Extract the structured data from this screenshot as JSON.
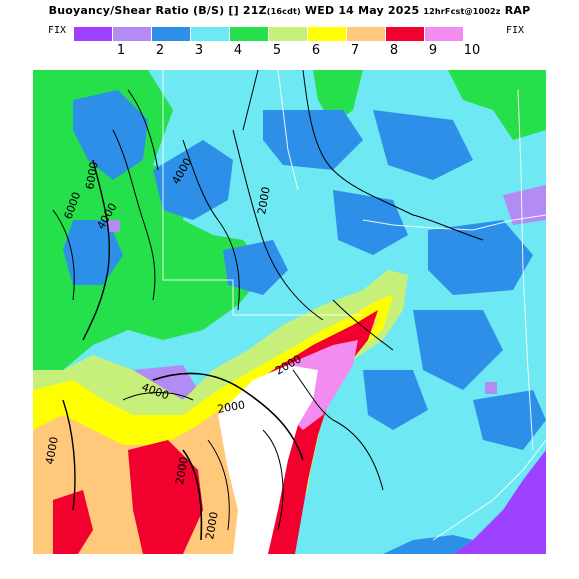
{
  "header": {
    "title": "Buoyancy/Shear Ratio (B/S)",
    "time": "[] 21Z",
    "local_time": "(16cdt)",
    "date": "WED 14 May 2025",
    "forecast": "12hrFcst@1002z",
    "model": "RAP"
  },
  "colorbar": {
    "fix_left": "FIX",
    "fix_right": "FIX",
    "less_arrow": "<",
    "more_arrow": ">",
    "labels": [
      "1",
      "2",
      "3",
      "4",
      "5",
      "6",
      "7",
      "8",
      "9",
      "10"
    ],
    "colors": [
      "#9e40ff",
      "#b28cf2",
      "#2e8fe8",
      "#6ee8f2",
      "#25e04a",
      "#c7f07a",
      "#ffff00",
      "#ffc87a",
      "#f2002e",
      "#f28cf0"
    ]
  },
  "map": {
    "contour_labels": [
      "6000",
      "4000",
      "4000",
      "2000",
      "4000",
      "2000",
      "2000",
      "2000",
      "4000",
      "2000",
      "6000"
    ],
    "background_fill": "#6ee8f2"
  }
}
